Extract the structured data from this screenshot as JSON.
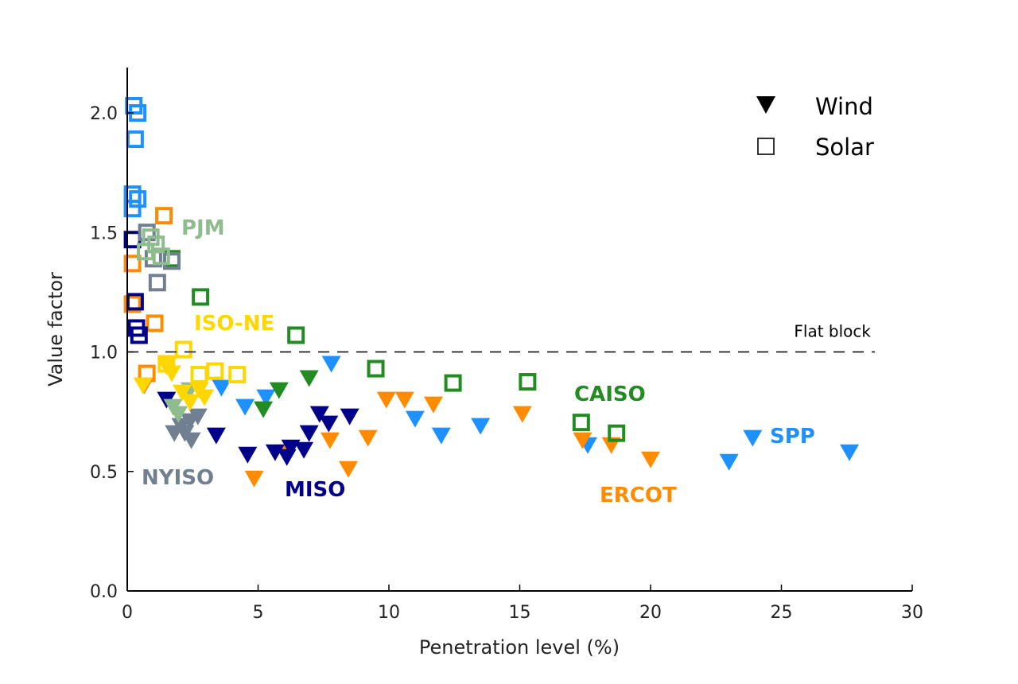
{
  "chart_data": {
    "type": "scatter",
    "title": "",
    "xlabel": "Penetration level (%)",
    "ylabel": "Value factor",
    "xlim": [
      0,
      30
    ],
    "ylim": [
      0,
      2.2
    ],
    "xticks": [
      "0",
      "5",
      "10",
      "15",
      "20",
      "25",
      "30"
    ],
    "yticks": [
      "0.0",
      "0.5",
      "1.0",
      "1.5",
      "2.0"
    ],
    "grid": false,
    "legend": {
      "position": "top-right",
      "entries": [
        {
          "label": "Wind",
          "marker": "triangle-down-filled"
        },
        {
          "label": "Solar",
          "marker": "square-open"
        }
      ]
    },
    "reference_line": {
      "y": 1.0,
      "style": "dashed",
      "label": "Flat block"
    },
    "regions": [
      {
        "name": "SPP",
        "color": "#1e90ff",
        "solar": [
          [
            0.25,
            2.03
          ],
          [
            0.4,
            2.0
          ],
          [
            0.3,
            1.89
          ],
          [
            0.2,
            1.66
          ],
          [
            0.4,
            1.64
          ],
          [
            0.2,
            1.6
          ]
        ],
        "wind": [
          [
            7.8,
            0.95
          ],
          [
            3.6,
            0.85
          ],
          [
            4.5,
            0.77
          ],
          [
            5.3,
            0.81
          ],
          [
            11.0,
            0.72
          ],
          [
            12.0,
            0.65
          ],
          [
            13.5,
            0.69
          ],
          [
            17.6,
            0.61
          ],
          [
            23.0,
            0.54
          ],
          [
            23.9,
            0.64
          ],
          [
            27.6,
            0.58
          ]
        ]
      },
      {
        "name": "ERCOT",
        "color": "#ff8c00",
        "solar": [
          [
            1.4,
            1.57
          ],
          [
            1.05,
            1.12
          ],
          [
            0.75,
            0.91
          ],
          [
            0.2,
            1.37
          ],
          [
            0.2,
            1.2
          ]
        ],
        "wind": [
          [
            9.9,
            0.8
          ],
          [
            10.6,
            0.8
          ],
          [
            11.7,
            0.78
          ],
          [
            15.1,
            0.74
          ],
          [
            17.4,
            0.63
          ],
          [
            18.5,
            0.61
          ],
          [
            20.0,
            0.55
          ],
          [
            9.2,
            0.64
          ],
          [
            7.75,
            0.63
          ],
          [
            8.45,
            0.51
          ],
          [
            4.85,
            0.47
          ],
          [
            6.1,
            0.58
          ],
          [
            0.65,
            0.86
          ]
        ]
      },
      {
        "name": "CAISO",
        "color": "#228b22",
        "solar": [
          [
            1.7,
            1.39
          ],
          [
            2.8,
            1.23
          ],
          [
            6.45,
            1.07
          ],
          [
            9.5,
            0.93
          ],
          [
            12.45,
            0.87
          ],
          [
            15.3,
            0.875
          ],
          [
            17.35,
            0.705
          ],
          [
            18.7,
            0.66
          ]
        ],
        "wind": [
          [
            6.95,
            0.89
          ],
          [
            5.8,
            0.84
          ],
          [
            5.2,
            0.76
          ]
        ]
      },
      {
        "name": "MISO",
        "color": "#00008b",
        "solar": [
          [
            0.2,
            1.47
          ],
          [
            0.3,
            1.21
          ],
          [
            0.35,
            1.1
          ],
          [
            0.45,
            1.07
          ]
        ],
        "wind": [
          [
            1.5,
            0.8
          ],
          [
            3.4,
            0.65
          ],
          [
            4.6,
            0.57
          ],
          [
            5.65,
            0.58
          ],
          [
            6.25,
            0.6
          ],
          [
            6.75,
            0.59
          ],
          [
            6.95,
            0.66
          ],
          [
            7.35,
            0.74
          ],
          [
            7.7,
            0.7
          ],
          [
            8.5,
            0.73
          ],
          [
            6.1,
            0.56
          ]
        ]
      },
      {
        "name": "NYISO",
        "color": "#708090",
        "solar": [
          [
            0.75,
            1.5
          ],
          [
            1.15,
            1.29
          ],
          [
            1.7,
            1.38
          ],
          [
            1.0,
            1.39
          ]
        ],
        "wind": [
          [
            1.8,
            0.66
          ],
          [
            2.2,
            0.66
          ],
          [
            2.45,
            0.63
          ],
          [
            2.7,
            0.73
          ],
          [
            2.4,
            0.71
          ],
          [
            2.05,
            0.69
          ]
        ]
      },
      {
        "name": "PJM",
        "color": "#8fbc8f",
        "solar": [
          [
            0.9,
            1.48
          ],
          [
            1.1,
            1.45
          ],
          [
            1.3,
            1.4
          ],
          [
            0.7,
            1.42
          ]
        ],
        "wind": [
          [
            1.75,
            0.77
          ],
          [
            1.95,
            0.74
          ],
          [
            2.4,
            0.84
          ]
        ]
      },
      {
        "name": "ISO-NE",
        "color": "#ffd700",
        "solar": [
          [
            2.15,
            1.01
          ],
          [
            2.75,
            0.905
          ],
          [
            3.35,
            0.92
          ],
          [
            4.2,
            0.905
          ],
          [
            1.5,
            0.95
          ]
        ],
        "wind": [
          [
            0.6,
            0.86
          ],
          [
            1.5,
            0.94
          ],
          [
            1.7,
            0.91
          ],
          [
            2.1,
            0.83
          ],
          [
            2.75,
            0.84
          ],
          [
            2.95,
            0.81
          ],
          [
            2.4,
            0.79
          ]
        ]
      }
    ]
  }
}
